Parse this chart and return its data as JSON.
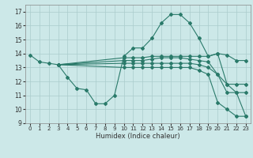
{
  "background_color": "#cce8e8",
  "grid_color": "#aacccc",
  "line_color": "#2a7a6a",
  "xlabel": "Humidex (Indice chaleur)",
  "xlim": [
    -0.5,
    23.5
  ],
  "ylim": [
    9,
    17.5
  ],
  "xticks": [
    0,
    1,
    2,
    3,
    4,
    5,
    6,
    7,
    8,
    9,
    10,
    11,
    12,
    13,
    14,
    15,
    16,
    17,
    18,
    19,
    20,
    21,
    22,
    23
  ],
  "yticks": [
    9,
    10,
    11,
    12,
    13,
    14,
    15,
    16,
    17
  ],
  "lines": [
    {
      "x": [
        0,
        1,
        2,
        3,
        4,
        5,
        6,
        7,
        8,
        9,
        10,
        11,
        12,
        13,
        14,
        15,
        16,
        17,
        18,
        19,
        20,
        21,
        22,
        23
      ],
      "y": [
        13.9,
        13.4,
        13.3,
        13.2,
        12.3,
        11.5,
        11.4,
        10.4,
        10.4,
        11.0,
        13.8,
        14.4,
        14.4,
        15.1,
        16.2,
        16.8,
        16.8,
        16.2,
        15.1,
        13.8,
        14.0,
        11.8,
        11.2,
        9.5
      ]
    },
    {
      "x": [
        3,
        10,
        11,
        12,
        13,
        14,
        15,
        16,
        17,
        18,
        19,
        20,
        21,
        22,
        23
      ],
      "y": [
        13.2,
        13.7,
        13.7,
        13.7,
        13.8,
        13.8,
        13.8,
        13.8,
        13.8,
        13.8,
        13.8,
        14.0,
        13.9,
        13.5,
        13.5
      ]
    },
    {
      "x": [
        3,
        10,
        11,
        12,
        13,
        14,
        15,
        16,
        17,
        18,
        19,
        20,
        21,
        22,
        23
      ],
      "y": [
        13.2,
        13.5,
        13.5,
        13.5,
        13.6,
        13.7,
        13.7,
        13.7,
        13.6,
        13.5,
        13.4,
        12.5,
        11.8,
        11.8,
        11.8
      ]
    },
    {
      "x": [
        3,
        10,
        11,
        12,
        13,
        14,
        15,
        16,
        17,
        18,
        19,
        20,
        21,
        22,
        23
      ],
      "y": [
        13.2,
        13.3,
        13.3,
        13.3,
        13.3,
        13.3,
        13.3,
        13.3,
        13.3,
        13.2,
        13.0,
        12.5,
        11.2,
        11.2,
        11.2
      ]
    },
    {
      "x": [
        3,
        10,
        11,
        12,
        13,
        14,
        15,
        16,
        17,
        18,
        19,
        20,
        21,
        22,
        23
      ],
      "y": [
        13.2,
        13.0,
        13.0,
        13.0,
        13.0,
        13.0,
        13.0,
        13.0,
        13.0,
        12.8,
        12.5,
        10.5,
        10.0,
        9.5,
        9.5
      ]
    }
  ]
}
